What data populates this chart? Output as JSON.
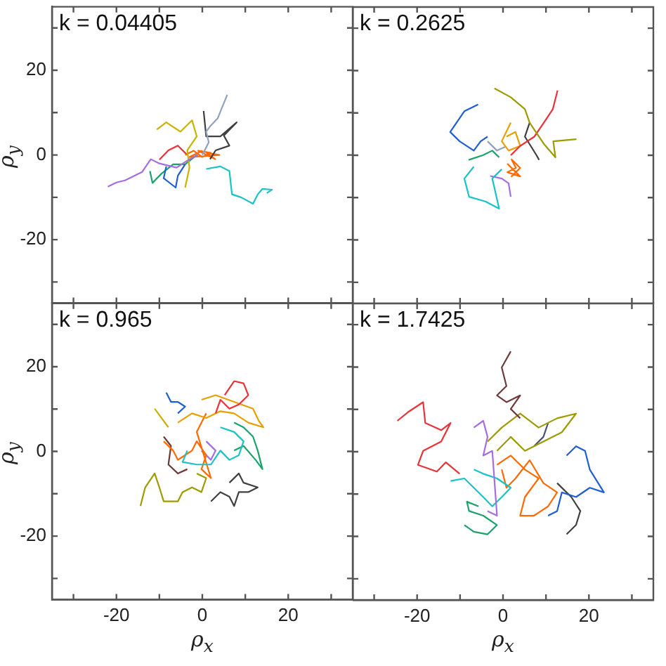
{
  "chart_data": [
    {
      "type": "line",
      "annotations": [
        "k = 0.04405"
      ],
      "ylabel": "ρ$_{y}$",
      "marker": "none",
      "tick_labels": "y",
      "xlim": [
        -35,
        35
      ],
      "ylim": [
        -35,
        35
      ],
      "xticks": [
        {
          "value": -30,
          "label": null
        },
        {
          "value": -20,
          "label": null
        },
        {
          "value": -10,
          "label": null
        },
        {
          "value": 0,
          "label": null
        },
        {
          "value": 10,
          "label": null
        },
        {
          "value": 20,
          "label": null
        },
        {
          "value": 30,
          "label": null
        }
      ],
      "yticks": [
        {
          "value": -30,
          "label": null
        },
        -20,
        {
          "value": -10,
          "label": null
        },
        0,
        {
          "value": 10,
          "label": null
        },
        20,
        {
          "value": 30,
          "label": null
        }
      ],
      "series": [
        {
          "color": "#a66ee0",
          "x": [
            -22,
            -20,
            -18,
            -14,
            -12,
            -10,
            -6,
            -3,
            -1
          ],
          "values": [
            -7.5,
            -6.5,
            -6,
            -4,
            -1,
            -2,
            -3,
            -1,
            0
          ]
        },
        {
          "color": "#19c3c8",
          "x": [
            0.9,
            4.2,
            6.3,
            6.9,
            9,
            11.8,
            12.9,
            14,
            16.2,
            15
          ],
          "values": [
            -3.3,
            -2.7,
            -3.8,
            -9.3,
            -10,
            -11.5,
            -9.3,
            -8,
            -8.2,
            -9
          ]
        },
        {
          "color": "#8fa3c0",
          "x": [
            5.8,
            4.5,
            3.6,
            2,
            0.9,
            1.5,
            0
          ],
          "values": [
            14.2,
            11,
            8.7,
            7,
            5.5,
            3,
            0
          ]
        },
        {
          "color": "#c8b400",
          "x": [
            -10.6,
            -8.4,
            -5.1,
            -2.4,
            -1.3,
            -3.5,
            -3,
            -4
          ],
          "values": [
            6,
            7.7,
            5.5,
            8.2,
            4.4,
            1.1,
            -3,
            -7.7
          ]
        },
        {
          "color": "#404040",
          "x": [
            0.3,
            0.9,
            4.2,
            8,
            5,
            6.3,
            3.1,
            1.8
          ],
          "values": [
            10.4,
            4.4,
            4.4,
            7.7,
            4.6,
            2.2,
            1.1,
            -1
          ]
        },
        {
          "color": "#1f5fd0",
          "x": [
            -8.4,
            -9,
            -6.2,
            -5.7,
            -4
          ],
          "values": [
            -2.7,
            -5.5,
            -7.7,
            -4.9,
            -2.2
          ]
        },
        {
          "color": "#1aa36a",
          "x": [
            -12.2,
            -11.6,
            -9.5,
            -6.8,
            -4,
            -1.3
          ],
          "values": [
            -3.8,
            -6.6,
            -4.4,
            -2.2,
            -2.2,
            0
          ]
        },
        {
          "color": "#ff6a00",
          "x": [
            -4,
            -2,
            0,
            2,
            -1,
            3,
            1,
            4,
            -3,
            0
          ],
          "values": [
            0,
            1,
            -0.5,
            0.5,
            1,
            -1,
            0.5,
            0,
            -0.5,
            1
          ]
        },
        {
          "color": "#e8333a",
          "x": [
            -10,
            -7.9,
            -5.7,
            -3.5
          ],
          "values": [
            -1.1,
            1.1,
            2.2,
            0
          ]
        }
      ]
    },
    {
      "type": "line",
      "annotations": [
        "k = 0.2625"
      ],
      "marker": "none",
      "tick_labels": false,
      "xlim": [
        -35,
        35
      ],
      "ylim": [
        -35,
        35
      ],
      "xticks": [
        {
          "value": -30,
          "label": null
        },
        {
          "value": -20,
          "label": null
        },
        {
          "value": -10,
          "label": null
        },
        {
          "value": 0,
          "label": null
        },
        {
          "value": 10,
          "label": null
        },
        {
          "value": 20,
          "label": null
        },
        {
          "value": 30,
          "label": null
        }
      ],
      "yticks": [
        {
          "value": -30,
          "label": null
        },
        {
          "value": -20,
          "label": null
        },
        {
          "value": -10,
          "label": null
        },
        {
          "value": 0,
          "label": null
        },
        {
          "value": 10,
          "label": null
        },
        {
          "value": 20,
          "label": null
        },
        {
          "value": 30,
          "label": null
        }
      ],
      "series": [
        {
          "color": "#1f5fd0",
          "x": [
            -5.8,
            -9,
            -12.3,
            -10.1,
            -6.8,
            -5.2,
            -3.6
          ],
          "values": [
            12,
            10.4,
            5.5,
            3.3,
            1.1,
            3.3,
            4.4
          ]
        },
        {
          "color": "#9c9c00",
          "x": [
            -2,
            1.8,
            5.1,
            6.2,
            9.5,
            12.2,
            11.7,
            17.1
          ],
          "values": [
            15.8,
            13.7,
            10.9,
            7.7,
            2.7,
            -0.5,
            3.3,
            3.8
          ]
        },
        {
          "color": "#e8333a",
          "x": [
            12.7,
            11.6,
            9.5,
            7.3,
            4,
            1.8
          ],
          "values": [
            15.3,
            10.9,
            7.7,
            4.4,
            2.2,
            0
          ]
        },
        {
          "color": "#19c3c8",
          "x": [
            -6.8,
            -9,
            -7.9,
            -4.1,
            -0.9,
            -2.5,
            -0.3
          ],
          "values": [
            -2.7,
            -5.5,
            -9.8,
            -10.9,
            -12.6,
            -5.5,
            -3.3
          ]
        },
        {
          "color": "#1aa36a",
          "x": [
            -8,
            -4.7,
            -2.5,
            -0.9
          ],
          "values": [
            -1.1,
            0,
            1.1,
            -0.5
          ]
        },
        {
          "color": "#ff6a00",
          "x": [
            1,
            3,
            2,
            4,
            2,
            3,
            1,
            4,
            2
          ],
          "values": [
            -2,
            -4,
            -5,
            -3,
            -1,
            -3,
            -4,
            -5,
            -3
          ]
        },
        {
          "color": "#a66ee0",
          "x": [
            1.8,
            1.3,
            -0.3,
            -3
          ],
          "values": [
            -9.8,
            -6.6,
            -5.5,
            -4.9
          ]
        },
        {
          "color": "#e8a000",
          "x": [
            0.8,
            2.9,
            4,
            1.3,
            -0.3,
            1.8
          ],
          "values": [
            4.4,
            5.5,
            2.2,
            1.1,
            3.3,
            7.7
          ]
        },
        {
          "color": "#404040",
          "x": [
            6.2,
            5.1,
            7.8,
            8.4
          ],
          "values": [
            7.7,
            4.4,
            0,
            -1.1
          ]
        },
        {
          "color": "#8fa3c0",
          "x": [
            -3.6,
            -1.4,
            0.5
          ],
          "values": [
            3.3,
            1.1,
            2
          ]
        }
      ]
    },
    {
      "type": "line",
      "annotations": [
        "k = 0.965"
      ],
      "xlabel": "ρ$_{x}$",
      "ylabel": "ρ$_{y}$",
      "marker": "none",
      "xlim": [
        -35,
        35
      ],
      "ylim": [
        -35,
        35
      ],
      "xticks": [
        {
          "value": -30,
          "label": null
        },
        -20,
        {
          "value": -10,
          "label": null
        },
        0,
        {
          "value": 10,
          "label": null
        },
        20,
        {
          "value": 30,
          "label": null
        }
      ],
      "yticks": [
        {
          "value": -30,
          "label": null
        },
        -20,
        {
          "value": -10,
          "label": null
        },
        0,
        {
          "value": 10,
          "label": null
        },
        20,
        {
          "value": 30,
          "label": null
        }
      ],
      "series": [
        {
          "color": "#e8333a",
          "x": [
            5.2,
            7.4,
            9.6,
            10.7,
            8.5,
            6.3,
            4.2,
            3.1
          ],
          "values": [
            13.3,
            16.6,
            16.1,
            13.3,
            11.1,
            10.1,
            12.2,
            9
          ]
        },
        {
          "color": "#e8a000",
          "x": [
            -0.2,
            3.1,
            7.4,
            11.8,
            13.1,
            14.2,
            10.7,
            7.4,
            4.2,
            0.9,
            -2.4,
            -5.7
          ],
          "values": [
            12.2,
            13.3,
            11.7,
            10.1,
            7.3,
            5.7,
            6.8,
            9,
            9.5,
            7.9,
            9,
            6.8
          ]
        },
        {
          "color": "#1f5fd0",
          "x": [
            -8.4,
            -7.3,
            -5.7,
            -4,
            -5.7
          ],
          "values": [
            13.9,
            11.7,
            11.7,
            10.6,
            9
          ]
        },
        {
          "color": "#19c3c8",
          "x": [
            4.2,
            7.4,
            9.6,
            8.5,
            6.3,
            4.2,
            2,
            -1.3,
            -4.6,
            -3.5
          ],
          "values": [
            5.7,
            4.6,
            2.4,
            -0.9,
            -2,
            0.2,
            -3.1,
            -3.1,
            -2.5,
            0.2
          ]
        },
        {
          "color": "#1aa36a",
          "x": [
            7.4,
            9.6,
            11.8,
            12.9,
            14,
            12.4,
            9.6,
            7.4
          ],
          "values": [
            6.8,
            5.7,
            3.5,
            0.2,
            -4.2,
            -2,
            1.3,
            0.2
          ]
        },
        {
          "color": "#ff6a00",
          "x": [
            -9,
            -6.8,
            -5.7,
            -2.4,
            -1.3,
            0.9,
            -0.2,
            2,
            -1.3,
            0.9
          ],
          "values": [
            2.4,
            0.2,
            -2,
            0.2,
            2.4,
            -0.9,
            -4.2,
            -6.3,
            4.6,
            9
          ]
        },
        {
          "color": "#9c9c00",
          "x": [
            -14.4,
            -13.3,
            -11.1,
            -10,
            -9,
            -5.7,
            -4.6,
            -2.4,
            -0.2,
            0.9,
            -1.3
          ],
          "values": [
            -12.9,
            -8.5,
            -5.2,
            -8.5,
            -11.8,
            -11.8,
            -9.6,
            -8.5,
            -9.6,
            -6.3,
            -5.2
          ]
        },
        {
          "color": "#404040",
          "x": [
            2,
            4.2,
            6.3,
            7.4,
            8.5,
            10.7,
            12.9,
            9.6,
            8.5,
            6.3
          ],
          "values": [
            -11.8,
            -9.6,
            -10.7,
            -12.9,
            -9.6,
            -9.6,
            -8.5,
            -7.4,
            -5.2,
            -7.4
          ]
        },
        {
          "color": "#a66ee0",
          "x": [
            0.9,
            3.1,
            2,
            -0.2
          ],
          "values": [
            2.4,
            0.2,
            -2,
            0.2
          ]
        },
        {
          "color": "#6e3b3b",
          "x": [
            -9,
            -7.3,
            -7.9,
            -5.7,
            -3.5
          ],
          "values": [
            3.5,
            1.3,
            -3.1,
            -5.2,
            -4.2
          ]
        },
        {
          "color": "#c8b400",
          "x": [
            -11.1,
            -9.5,
            -7.9
          ],
          "values": [
            10.1,
            7.9,
            5.7
          ]
        }
      ]
    },
    {
      "type": "line",
      "annotations": [
        "k = 1.7425"
      ],
      "xlabel": "ρ$_{x}$",
      "marker": "none",
      "tick_labels": "x",
      "xlim": [
        -35,
        35
      ],
      "ylim": [
        -35,
        35
      ],
      "xticks": [
        {
          "value": -30,
          "label": null
        },
        -20,
        {
          "value": -10,
          "label": null
        },
        0,
        {
          "value": 10,
          "label": null
        },
        20,
        {
          "value": 30,
          "label": null
        }
      ],
      "yticks": [
        {
          "value": -30,
          "label": null
        },
        {
          "value": -20,
          "label": null
        },
        {
          "value": -10,
          "label": null
        },
        {
          "value": 0,
          "label": null
        },
        {
          "value": 10,
          "label": null
        },
        {
          "value": 20,
          "label": null
        },
        {
          "value": 30,
          "label": null
        }
      ],
      "series": [
        {
          "color": "#6e3b3b",
          "x": [
            1.8,
            -0.3,
            0.8,
            -1.4,
            0.8,
            4,
            1.8,
            4
          ],
          "values": [
            23.7,
            19.9,
            15.5,
            13.3,
            11.7,
            13.3,
            10.1,
            7.9
          ]
        },
        {
          "color": "#e8333a",
          "x": [
            -24.6,
            -21.9,
            -18.6,
            -18.1,
            -14.4,
            -12.2,
            -14.4,
            -18.6,
            -19.8,
            -15.4,
            -13.3,
            -10.1
          ],
          "values": [
            7.3,
            9.5,
            11.7,
            6.8,
            5.1,
            6.8,
            2.4,
            0.2,
            -3.1,
            -4.7,
            -2.5,
            -5.2
          ]
        },
        {
          "color": "#9c9c00",
          "x": [
            -3.6,
            -0.3,
            4,
            8.3,
            12.6,
            17,
            13.7,
            9.4,
            5.1,
            1.8,
            -1.4
          ],
          "values": [
            2.4,
            5.7,
            9,
            5.7,
            7.9,
            9,
            4.6,
            2.4,
            0.2,
            3.5,
            0.2
          ]
        },
        {
          "color": "#a66ee0",
          "x": [
            -6.8,
            -4.6,
            -3.6,
            -4.6,
            -2.5,
            -1.4,
            -3.6
          ],
          "values": [
            5.7,
            7.3,
            3.5,
            -0.9,
            0.2,
            -15.1,
            -14
          ]
        },
        {
          "color": "#19c3c8",
          "x": [
            -12.2,
            -9,
            -6.8,
            -4.6,
            -2.5,
            -0.3,
            1.8,
            -1.4,
            -4.6,
            -6.8
          ],
          "values": [
            -6.9,
            -6.3,
            -8.5,
            -10.7,
            -12.9,
            -10.7,
            -8.5,
            -6.3,
            -5.2,
            -4.2
          ]
        },
        {
          "color": "#1aa36a",
          "x": [
            -9,
            -6.8,
            -3.6,
            -1.4,
            -4.6,
            -7.9,
            -8.4,
            -5.7
          ],
          "values": [
            -17.3,
            -18.9,
            -19.5,
            -17.3,
            -15.1,
            -14,
            -11.8,
            -12.9
          ]
        },
        {
          "color": "#ff6a00",
          "x": [
            -1.4,
            1.8,
            5.1,
            8.3,
            5.1,
            4,
            7.2,
            10.5,
            12.6,
            9.4,
            6.2,
            2.9,
            0.8,
            -0.3
          ],
          "values": [
            -3.1,
            -0.9,
            -4.2,
            -6.3,
            -10.7,
            -15.1,
            -15.1,
            -12.9,
            -9.6,
            -7.4,
            -2,
            -6.3,
            -8.5,
            -4.2
          ]
        },
        {
          "color": "#1f5fd0",
          "x": [
            14.8,
            17,
            19.1,
            20.2,
            23.5,
            20.2,
            17,
            13.7,
            12.6,
            10.5
          ],
          "values": [
            -0.9,
            1.3,
            0.2,
            -4.2,
            -9.6,
            -8.5,
            -10.7,
            -9.6,
            -14,
            -15.1
          ]
        },
        {
          "color": "#404040",
          "x": [
            14.8,
            17,
            18,
            15.9,
            12.6
          ],
          "values": [
            -19.5,
            -17.3,
            -14,
            -10.7,
            -7.4
          ]
        },
        {
          "color": "#4a5070",
          "x": [
            10.5,
            9.4,
            7.2
          ],
          "values": [
            6.8,
            3.5,
            1.3
          ]
        }
      ]
    }
  ]
}
